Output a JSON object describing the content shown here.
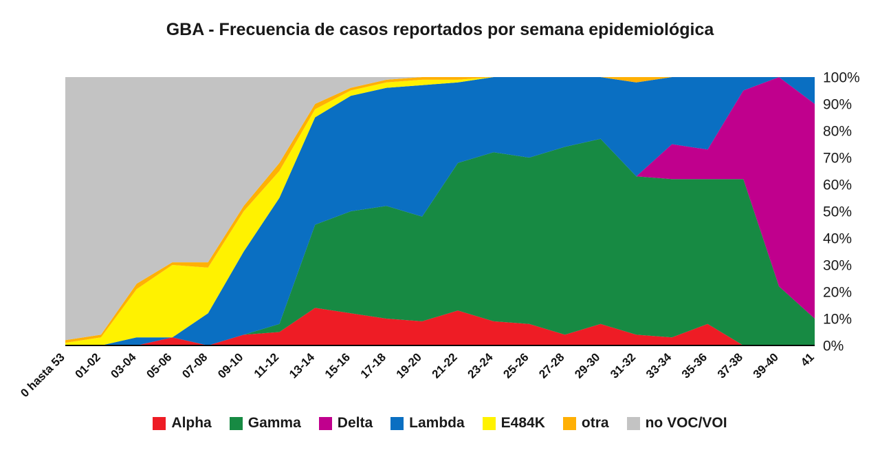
{
  "chart_data": {
    "type": "area",
    "stacking": "percent",
    "title": "GBA - Frecuencia de casos reportados por semana epidemiológica",
    "xlabel": "",
    "ylabel": "",
    "ylim": [
      0,
      100
    ],
    "grid": false,
    "legend_position": "bottom",
    "y_ticks": [
      "0%",
      "10%",
      "20%",
      "30%",
      "40%",
      "50%",
      "60%",
      "70%",
      "80%",
      "90%",
      "100%"
    ],
    "categories": [
      "0 hasta 53",
      "01-02",
      "03-04",
      "05-06",
      "07-08",
      "09-10",
      "11-12",
      "13-14",
      "15-16",
      "17-18",
      "19-20",
      "21-22",
      "23-24",
      "25-26",
      "27-28",
      "29-30",
      "31-32",
      "33-34",
      "35-36",
      "37-38",
      "39-40",
      "41"
    ],
    "series": [
      {
        "name": "Alpha",
        "color": "#EE1C25",
        "values": [
          0,
          0,
          0,
          3,
          0,
          4,
          5,
          14,
          12,
          10,
          9,
          13,
          9,
          8,
          4,
          8,
          4,
          3,
          8,
          0,
          0,
          0
        ]
      },
      {
        "name": "Gamma",
        "color": "#178A43",
        "values": [
          0,
          0,
          0,
          0,
          0,
          0,
          3,
          31,
          38,
          42,
          39,
          55,
          63,
          62,
          70,
          69,
          59,
          59,
          54,
          62,
          22,
          10
        ]
      },
      {
        "name": "Delta",
        "color": "#C0008D",
        "values": [
          0,
          0,
          0,
          0,
          0,
          0,
          0,
          0,
          0,
          0,
          0,
          0,
          0,
          0,
          0,
          0,
          0,
          13,
          11,
          33,
          78,
          80
        ]
      },
      {
        "name": "Lambda",
        "color": "#0A6FC2",
        "values": [
          0,
          0,
          3,
          0,
          12,
          31,
          47,
          40,
          43,
          44,
          49,
          30,
          28,
          30,
          26,
          23,
          35,
          25,
          27,
          5,
          0,
          10
        ]
      },
      {
        "name": "E484K",
        "color": "#FFF200",
        "values": [
          1,
          3,
          18,
          27,
          17,
          15,
          10,
          3,
          2,
          2,
          2,
          1,
          0,
          0,
          0,
          0,
          0,
          0,
          0,
          0,
          0,
          0
        ]
      },
      {
        "name": "otra",
        "color": "#FFB005",
        "values": [
          1,
          1,
          2,
          1,
          2,
          2,
          3,
          2,
          1,
          1,
          1,
          1,
          0,
          0,
          0,
          0,
          2,
          0,
          0,
          0,
          0,
          0
        ]
      },
      {
        "name": "no VOC/VOI",
        "color": "#C3C3C3",
        "values": [
          98,
          96,
          77,
          69,
          69,
          48,
          32,
          10,
          4,
          1,
          0,
          0,
          0,
          0,
          0,
          0,
          0,
          0,
          0,
          0,
          0,
          0
        ]
      }
    ]
  }
}
